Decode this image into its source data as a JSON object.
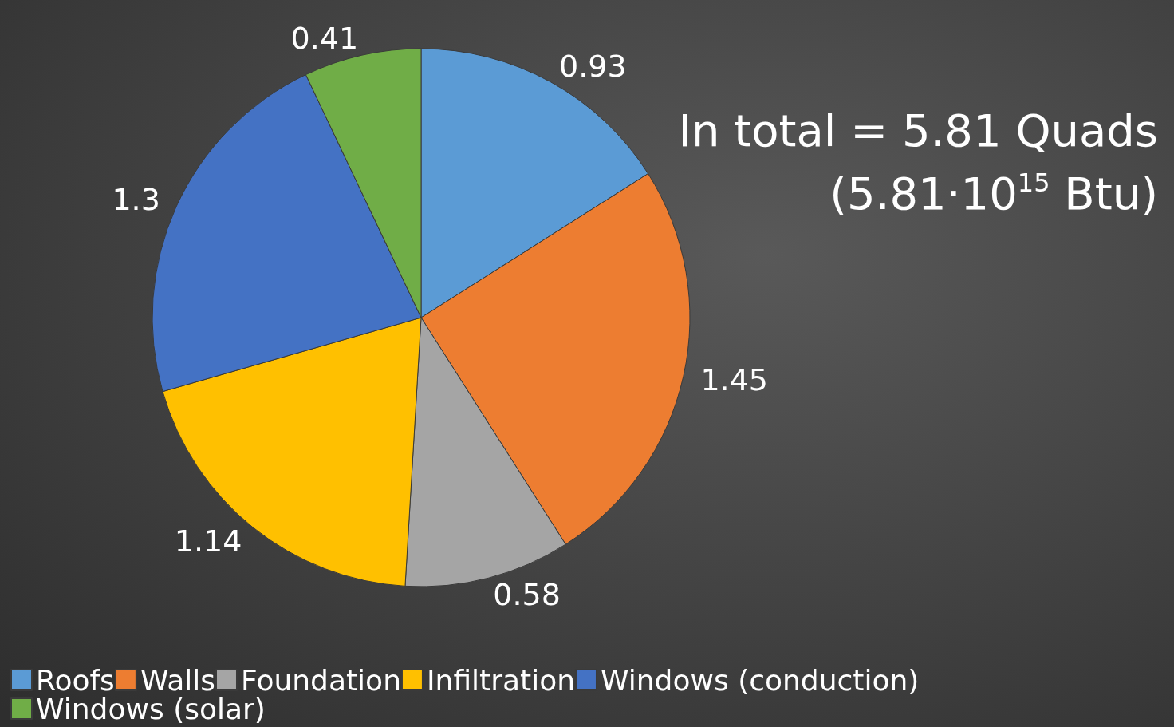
{
  "chart_data": {
    "type": "pie",
    "categories": [
      "Roofs",
      "Walls",
      "Foundation",
      "Infiltration",
      "Windows (conduction)",
      "Windows (solar)"
    ],
    "values": [
      0.93,
      1.45,
      0.58,
      1.14,
      1.3,
      0.41
    ],
    "colors": [
      "#5b9bd5",
      "#ed7d31",
      "#a5a5a5",
      "#ffc000",
      "#4472c4",
      "#70ad47"
    ],
    "data_labels": true,
    "legend": "bottom",
    "annotations": [
      "In total = 5.81 Quads",
      "(5.81·10$^{15}$ Btu)"
    ]
  }
}
